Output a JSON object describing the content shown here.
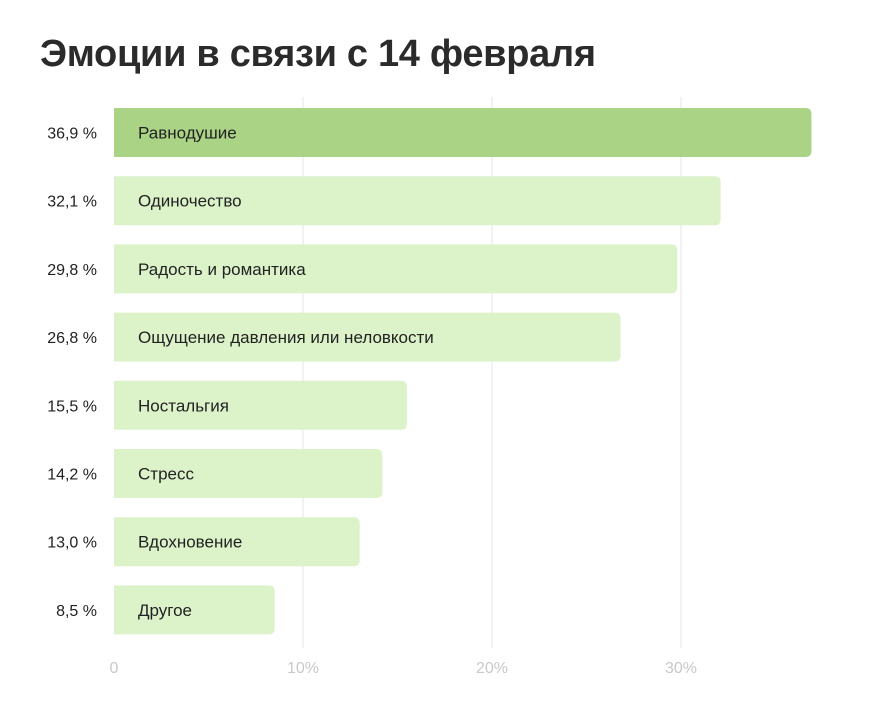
{
  "title": "Эмоции в связи с 14 февраля",
  "chart_data": {
    "type": "bar",
    "orientation": "horizontal",
    "title": "Эмоции в связи с 14 февраля",
    "categories": [
      "Равнодушие",
      "Одиночество",
      "Радость и романтика",
      "Ощущение давления или неловкости",
      "Ностальгия",
      "Стресс",
      "Вдохновение",
      "Другое"
    ],
    "values": [
      36.9,
      32.1,
      29.8,
      26.8,
      15.5,
      14.2,
      13.0,
      8.5
    ],
    "value_labels": [
      "36,9 %",
      "32,1 %",
      "29,8 %",
      "26,8 %",
      "15,5 %",
      "14,2 %",
      "13,0 %",
      "8,5 %"
    ],
    "x_ticks": [
      0,
      10,
      20,
      30
    ],
    "x_tick_labels": [
      "0",
      "10%",
      "20%",
      "30%"
    ],
    "xlim": [
      0,
      40
    ],
    "grid": true,
    "highlight_index": 0,
    "colors": {
      "highlight": "#aad386",
      "bar": "#dcf3ca"
    }
  }
}
